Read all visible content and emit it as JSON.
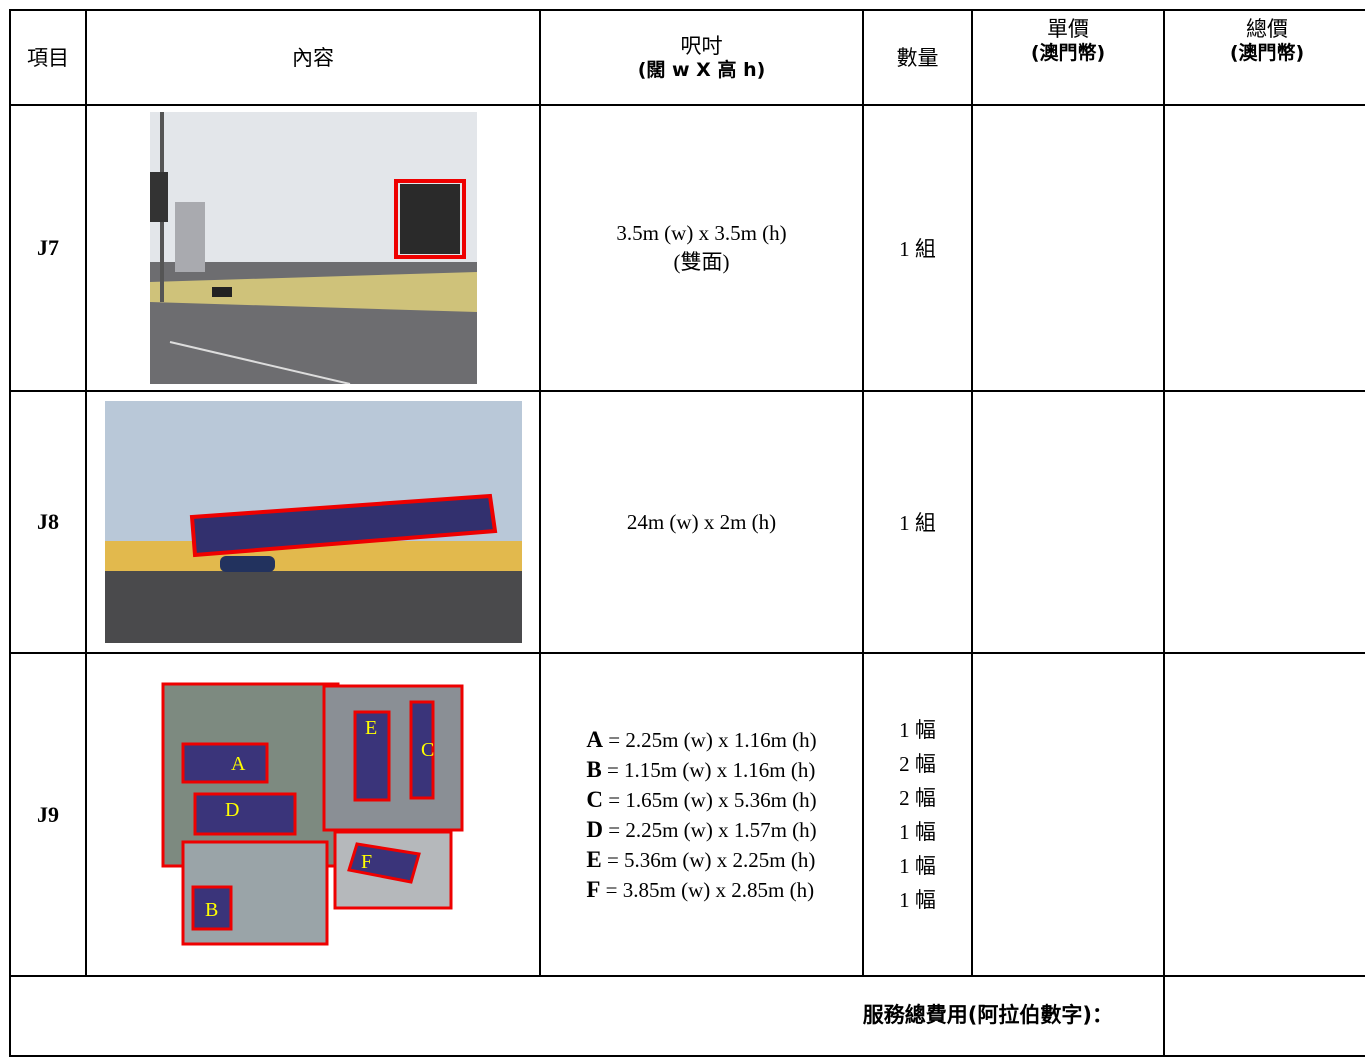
{
  "table": {
    "header": [
      [
        "項目"
      ],
      [
        "內容"
      ],
      [
        "呎吋",
        "(闊 w X 高 h)"
      ],
      [
        "數量"
      ],
      [
        "單價",
        "(澳門幣)"
      ],
      [
        "總價",
        "(澳門幣)"
      ]
    ],
    "rows": [
      {
        "item": "J7",
        "sizes": [
          "3.5m (w) x 3.5m (h)",
          "(雙面)"
        ],
        "quantities": [
          "1 組"
        ]
      },
      {
        "item": "J8",
        "sizes": [
          "24m (w) x 2m (h)"
        ],
        "quantities": [
          "1 組"
        ]
      },
      {
        "item": "J9",
        "sizes": [
          {
            "label": "A",
            "text": "= 2.25m (w) x 1.16m (h)"
          },
          {
            "label": "B",
            "text": "= 1.15m (w) x 1.16m (h)"
          },
          {
            "label": "C",
            "text": "= 1.65m (w) x 5.36m (h)"
          },
          {
            "label": "D",
            "text": "= 2.25m (w) x 1.57m (h)"
          },
          {
            "label": "E",
            "text": "= 5.36m (w) x 2.25m (h)"
          },
          {
            "label": "F",
            "text": "= 3.85m (w) x 2.85m (h)"
          }
        ],
        "quantities": [
          "1 幅",
          "2 幅",
          "2 幅",
          "1 幅",
          "1 幅",
          "1 幅"
        ]
      }
    ],
    "footer": "服務總費用(阿拉伯數字)："
  }
}
